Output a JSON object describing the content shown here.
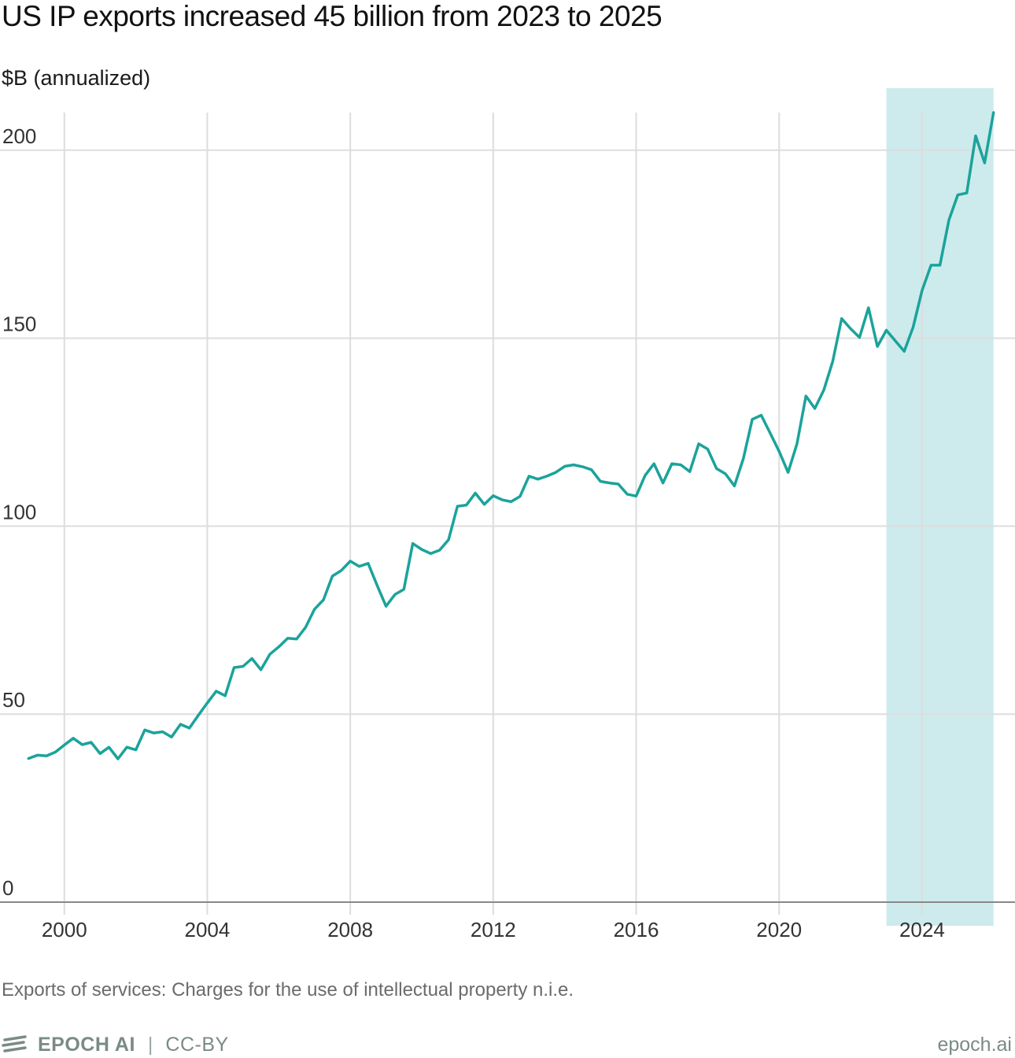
{
  "header": {
    "title": "US IP exports increased 45 billion from 2023 to 2025",
    "y_unit_label": "$B (annualized)"
  },
  "caption": "Exports of services: Charges for the use of intellectual property n.i.e.",
  "footer": {
    "brand": "EPOCH AI",
    "separator": "|",
    "license": "CC-BY",
    "site": "epoch.ai"
  },
  "colors": {
    "line": "#1aa39b",
    "highlight": "#cdebec",
    "grid": "#dddddd",
    "axis": "#888888",
    "tick_text": "#333333"
  },
  "chart_data": {
    "type": "line",
    "x_axis": "date (year)",
    "xlim": [
      1998.2,
      2026.6
    ],
    "ylim": [
      0,
      210
    ],
    "x_ticks": [
      2000,
      2004,
      2008,
      2012,
      2016,
      2020,
      2024
    ],
    "y_ticks": [
      0,
      50,
      100,
      150,
      200
    ],
    "grid": true,
    "highlight_range": [
      2023.0,
      2026.0
    ],
    "series": [
      {
        "x": [
          1999.0,
          1999.25,
          1999.5,
          1999.75,
          2000.0,
          2000.25,
          2000.5,
          2000.75,
          2001.0,
          2001.25,
          2001.5,
          2001.75,
          2002.0,
          2002.25,
          2002.5,
          2002.75,
          2003.0,
          2003.25,
          2003.5,
          2003.75,
          2004.0,
          2004.25,
          2004.5,
          2004.75,
          2005.0,
          2005.25,
          2005.5,
          2005.75,
          2006.0,
          2006.25,
          2006.5,
          2006.75,
          2007.0,
          2007.25,
          2007.5,
          2007.75,
          2008.0,
          2008.25,
          2008.5,
          2008.75,
          2009.0,
          2009.25,
          2009.5,
          2009.75,
          2010.0,
          2010.25,
          2010.5,
          2010.75,
          2011.0,
          2011.25,
          2011.5,
          2011.75,
          2012.0,
          2012.25,
          2012.5,
          2012.75,
          2013.0,
          2013.25,
          2013.5,
          2013.75,
          2014.0,
          2014.25,
          2014.5,
          2014.75,
          2015.0,
          2015.25,
          2015.5,
          2015.75,
          2016.0,
          2016.25,
          2016.5,
          2016.75,
          2017.0,
          2017.25,
          2017.5,
          2017.75,
          2018.0,
          2018.25,
          2018.5,
          2018.75,
          2019.0,
          2019.25,
          2019.5,
          2019.75,
          2020.0,
          2020.25,
          2020.5,
          2020.75,
          2021.0,
          2021.25,
          2021.5,
          2021.75,
          2022.0,
          2022.25,
          2022.5,
          2022.75,
          2023.0,
          2023.25,
          2023.5,
          2023.75,
          2024.0,
          2024.25,
          2024.5,
          2024.75,
          2025.0,
          2025.25,
          2025.5,
          2025.75,
          2026.0
        ],
        "values": [
          38.2,
          39.1,
          38.9,
          39.9,
          41.8,
          43.6,
          41.9,
          42.5,
          39.5,
          41.2,
          38.1,
          41.2,
          40.5,
          45.8,
          45.0,
          45.3,
          43.9,
          47.3,
          46.3,
          49.7,
          53.0,
          56.1,
          54.9,
          62.4,
          62.7,
          64.8,
          61.8,
          65.9,
          67.9,
          70.2,
          70.0,
          73.1,
          77.9,
          80.4,
          86.7,
          88.2,
          90.7,
          89.3,
          90.1,
          84.3,
          78.7,
          81.8,
          83.2,
          95.4,
          93.8,
          92.7,
          93.6,
          96.4,
          105.3,
          105.6,
          108.8,
          105.8,
          108.1,
          107.0,
          106.5,
          107.9,
          113.3,
          112.5,
          113.3,
          114.3,
          115.9,
          116.3,
          115.8,
          115.0,
          111.9,
          111.5,
          111.2,
          108.5,
          108.0,
          113.5,
          116.6,
          111.5,
          116.6,
          116.3,
          114.5,
          121.9,
          120.5,
          115.3,
          113.9,
          110.7,
          118.0,
          128.4,
          129.5,
          124.7,
          119.9,
          114.3,
          121.9,
          134.6,
          131.3,
          136.2,
          143.8,
          155.2,
          152.5,
          150.2,
          158.1,
          147.8,
          152.1,
          149.3,
          146.5,
          152.9,
          162.7,
          169.4,
          169.4,
          181.4,
          188.1,
          188.6,
          203.8,
          196.6,
          210.0
        ]
      }
    ]
  }
}
